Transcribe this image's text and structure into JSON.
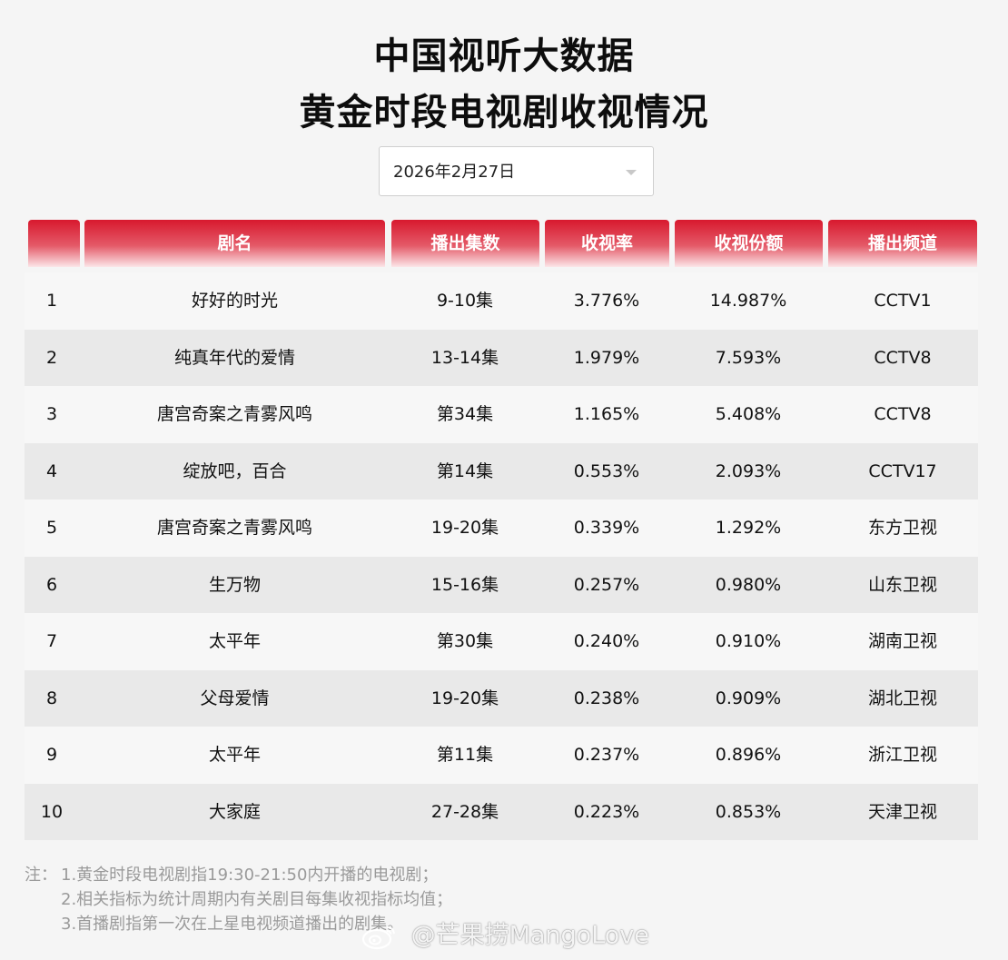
{
  "header": {
    "title_line1": "中国视听大数据",
    "title_line2": "黄金时段电视剧收视情况"
  },
  "date_select": {
    "value": "2026年2月27日",
    "icon": "chevron-down-icon"
  },
  "table": {
    "columns": [
      "",
      "剧名",
      "播出集数",
      "收视率",
      "收视份额",
      "播出频道"
    ],
    "rows": [
      {
        "rank": "1",
        "name": "好好的时光",
        "episodes": "9-10集",
        "rating": "3.776%",
        "share": "14.987%",
        "channel": "CCTV1"
      },
      {
        "rank": "2",
        "name": "纯真年代的爱情",
        "episodes": "13-14集",
        "rating": "1.979%",
        "share": "7.593%",
        "channel": "CCTV8"
      },
      {
        "rank": "3",
        "name": "唐宫奇案之青雾风鸣",
        "episodes": "第34集",
        "rating": "1.165%",
        "share": "5.408%",
        "channel": "CCTV8"
      },
      {
        "rank": "4",
        "name": "绽放吧，百合",
        "episodes": "第14集",
        "rating": "0.553%",
        "share": "2.093%",
        "channel": "CCTV17"
      },
      {
        "rank": "5",
        "name": "唐宫奇案之青雾风鸣",
        "episodes": "19-20集",
        "rating": "0.339%",
        "share": "1.292%",
        "channel": "东方卫视"
      },
      {
        "rank": "6",
        "name": "生万物",
        "episodes": "15-16集",
        "rating": "0.257%",
        "share": "0.980%",
        "channel": "山东卫视"
      },
      {
        "rank": "7",
        "name": "太平年",
        "episodes": "第30集",
        "rating": "0.240%",
        "share": "0.910%",
        "channel": "湖南卫视"
      },
      {
        "rank": "8",
        "name": "父母爱情",
        "episodes": "19-20集",
        "rating": "0.238%",
        "share": "0.909%",
        "channel": "湖北卫视"
      },
      {
        "rank": "9",
        "name": "太平年",
        "episodes": "第11集",
        "rating": "0.237%",
        "share": "0.896%",
        "channel": "浙江卫视"
      },
      {
        "rank": "10",
        "name": "大家庭",
        "episodes": "27-28集",
        "rating": "0.223%",
        "share": "0.853%",
        "channel": "天津卫视"
      }
    ]
  },
  "notes": {
    "prefix": "注：",
    "items": [
      "1.黄金时段电视剧指19:30-21:50内开播的电视剧；",
      "2.相关指标为统计周期内有关剧目每集收视指标均值；",
      "3.首播剧指第一次在上星电视频道播出的剧集。"
    ]
  },
  "watermark": {
    "text": "@芒果捞MangoLove",
    "icon": "weibo-logo-icon"
  },
  "colors": {
    "header_red": "#d8192e",
    "header_fade": "#fbe6e8",
    "row_light": "#f7f7f7",
    "row_dark": "#e9e9e9",
    "note_gray": "#9a9a9a"
  }
}
